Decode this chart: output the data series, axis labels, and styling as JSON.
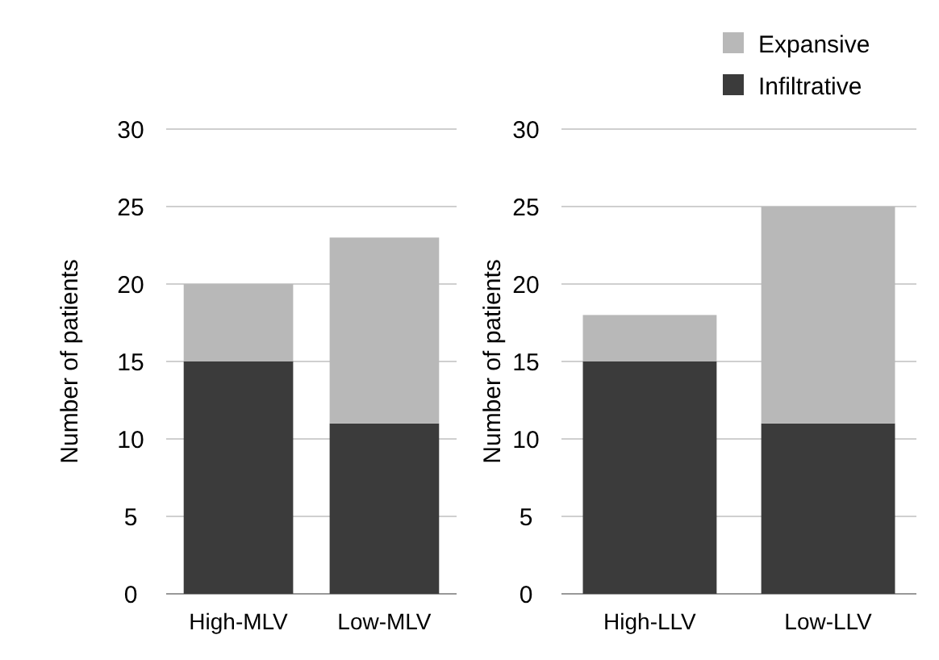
{
  "chart_data": [
    {
      "type": "bar",
      "stacked": true,
      "ylabel": "Number of patients",
      "categories": [
        "High-MLV",
        "Low-MLV"
      ],
      "ylim": [
        0,
        30
      ],
      "yticks": [
        0,
        5,
        10,
        15,
        20,
        25,
        30
      ],
      "grid": "y",
      "legend": false,
      "series": [
        {
          "color": "#3b3b3b",
          "values": [
            15,
            11
          ]
        },
        {
          "color": "#b8b8b8",
          "values": [
            5,
            12
          ]
        }
      ]
    },
    {
      "type": "bar",
      "stacked": true,
      "ylabel": "Number of patients",
      "categories": [
        "High-LLV",
        "Low-LLV"
      ],
      "ylim": [
        0,
        30
      ],
      "yticks": [
        0,
        5,
        10,
        15,
        20,
        25,
        30
      ],
      "grid": "y",
      "legend": "top right",
      "series": [
        {
          "name": "Infiltrative",
          "color": "#3b3b3b",
          "values": [
            15,
            11
          ]
        },
        {
          "name": "Expansive",
          "color": "#b8b8b8",
          "values": [
            3,
            14
          ]
        }
      ]
    }
  ]
}
